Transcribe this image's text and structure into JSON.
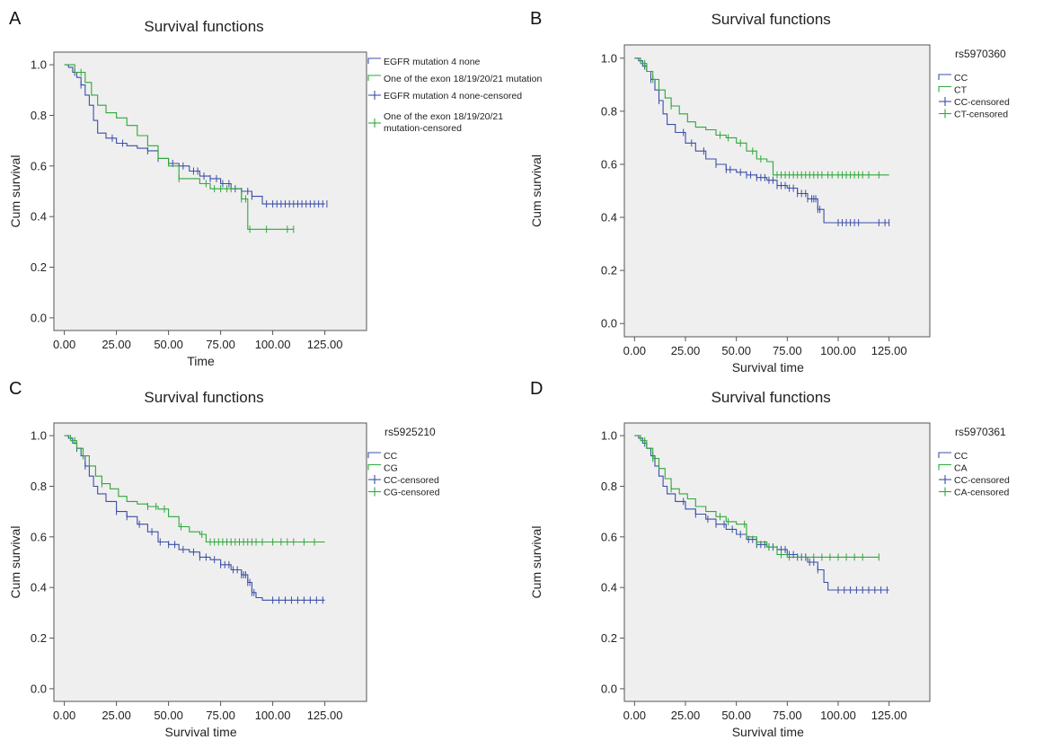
{
  "colors": {
    "blue": "#3b4fa8",
    "green": "#2ea83a",
    "plot_bg": "#efefef",
    "frame": "#555555"
  },
  "chart_data": [
    {
      "type": "line",
      "panel_label": "A",
      "title": "Survival functions",
      "xlabel": "Time",
      "ylabel": "Cum survival",
      "xlim": [
        -5,
        145
      ],
      "ylim": [
        -0.05,
        1.05
      ],
      "xticks": [
        "0.00",
        "25.00",
        "50.00",
        "75.00",
        "100.00",
        "125.00"
      ],
      "yticks": [
        "0.0",
        "0.2",
        "0.4",
        "0.6",
        "0.8",
        "1.0"
      ],
      "legend_title": "",
      "legend_placement": "right",
      "legend": [
        "EGFR mutation 4 none",
        "One of the exon 18/19/20/21 mutation",
        "EGFR mutation 4 none-censored",
        "One of the exon 18/19/20/21 mutation-censored"
      ],
      "series": [
        {
          "color": "blue",
          "x": [
            0,
            2,
            4,
            6,
            8,
            10,
            12,
            14,
            16,
            20,
            25,
            30,
            35,
            40,
            45,
            50,
            55,
            60,
            65,
            70,
            75,
            80,
            85,
            90,
            95,
            100,
            110,
            125
          ],
          "y": [
            1.0,
            0.99,
            0.97,
            0.95,
            0.92,
            0.88,
            0.84,
            0.78,
            0.73,
            0.71,
            0.69,
            0.68,
            0.67,
            0.66,
            0.63,
            0.61,
            0.6,
            0.58,
            0.56,
            0.55,
            0.53,
            0.51,
            0.5,
            0.48,
            0.45,
            0.45,
            0.45,
            0.45
          ],
          "censored": [
            5,
            8,
            23,
            28,
            40,
            45,
            52,
            57,
            62,
            64,
            67,
            70,
            73,
            76,
            79,
            82,
            85,
            88,
            90,
            97,
            100,
            102,
            104,
            106,
            108,
            110,
            112,
            114,
            116,
            118,
            120,
            122,
            124,
            126
          ]
        },
        {
          "color": "green",
          "x": [
            0,
            5,
            10,
            13,
            16,
            20,
            25,
            30,
            35,
            40,
            45,
            50,
            55,
            60,
            65,
            70,
            75,
            80,
            85,
            88,
            100,
            110
          ],
          "y": [
            1.0,
            0.97,
            0.93,
            0.88,
            0.84,
            0.81,
            0.79,
            0.76,
            0.72,
            0.68,
            0.63,
            0.6,
            0.55,
            0.55,
            0.53,
            0.51,
            0.51,
            0.51,
            0.47,
            0.35,
            0.35,
            0.35
          ],
          "censored": [
            8,
            55,
            68,
            72,
            75,
            78,
            80,
            85,
            87,
            89,
            97,
            107,
            110
          ]
        }
      ]
    },
    {
      "type": "line",
      "panel_label": "B",
      "title": "Survival functions",
      "xlabel": "Survival time",
      "ylabel": "Cum survival",
      "xlim": [
        -5,
        145
      ],
      "ylim": [
        -0.05,
        1.05
      ],
      "xticks": [
        "0.00",
        "25.00",
        "50.00",
        "75.00",
        "100.00",
        "125.00"
      ],
      "yticks": [
        "0.0",
        "0.2",
        "0.4",
        "0.6",
        "0.8",
        "1.0"
      ],
      "legend_title": "rs5970360",
      "legend_placement": "right",
      "legend": [
        "CC",
        "CT",
        "CC-censored",
        "CT-censored"
      ],
      "series": [
        {
          "color": "blue",
          "x": [
            0,
            2,
            4,
            6,
            8,
            10,
            12,
            14,
            16,
            20,
            25,
            30,
            35,
            40,
            45,
            50,
            55,
            60,
            65,
            70,
            75,
            80,
            85,
            90,
            93,
            95,
            100,
            125
          ],
          "y": [
            1.0,
            0.99,
            0.97,
            0.95,
            0.92,
            0.88,
            0.84,
            0.79,
            0.75,
            0.72,
            0.68,
            0.65,
            0.62,
            0.6,
            0.58,
            0.57,
            0.56,
            0.55,
            0.54,
            0.52,
            0.51,
            0.49,
            0.47,
            0.43,
            0.38,
            0.38,
            0.38,
            0.38
          ],
          "censored": [
            5,
            8,
            12,
            24,
            28,
            34,
            40,
            45,
            47,
            52,
            55,
            57,
            60,
            62,
            64,
            66,
            68,
            70,
            72,
            74,
            76,
            78,
            80,
            82,
            84,
            85,
            87,
            88,
            89,
            90,
            91,
            100,
            102,
            104,
            106,
            108,
            110,
            120,
            123,
            125
          ]
        },
        {
          "color": "green",
          "x": [
            0,
            3,
            6,
            9,
            12,
            15,
            18,
            22,
            26,
            30,
            35,
            40,
            45,
            50,
            55,
            60,
            65,
            68,
            125
          ],
          "y": [
            1.0,
            0.98,
            0.95,
            0.92,
            0.88,
            0.85,
            0.82,
            0.79,
            0.76,
            0.74,
            0.73,
            0.71,
            0.7,
            0.68,
            0.65,
            0.62,
            0.61,
            0.56,
            0.56
          ],
          "censored": [
            5,
            9,
            18,
            42,
            46,
            52,
            58,
            62,
            70,
            72,
            74,
            76,
            78,
            80,
            82,
            84,
            86,
            88,
            90,
            92,
            95,
            97,
            100,
            102,
            104,
            106,
            108,
            110,
            112,
            115,
            120
          ]
        }
      ]
    },
    {
      "type": "line",
      "panel_label": "C",
      "title": "Survival functions",
      "xlabel": "Survival time",
      "ylabel": "Cum survival",
      "xlim": [
        -5,
        145
      ],
      "ylim": [
        -0.05,
        1.05
      ],
      "xticks": [
        "0.00",
        "25.00",
        "50.00",
        "75.00",
        "100.00",
        "125.00"
      ],
      "yticks": [
        "0.0",
        "0.2",
        "0.4",
        "0.6",
        "0.8",
        "1.0"
      ],
      "legend_title": "rs5925210",
      "legend_placement": "right",
      "legend": [
        "CC",
        "CG",
        "CC-censored",
        "CG-censored"
      ],
      "series": [
        {
          "color": "blue",
          "x": [
            0,
            2,
            4,
            6,
            8,
            10,
            12,
            14,
            16,
            20,
            25,
            30,
            35,
            40,
            45,
            50,
            55,
            60,
            65,
            70,
            75,
            80,
            85,
            88,
            90,
            92,
            95,
            125
          ],
          "y": [
            1.0,
            0.99,
            0.97,
            0.95,
            0.92,
            0.88,
            0.84,
            0.8,
            0.77,
            0.74,
            0.7,
            0.68,
            0.65,
            0.62,
            0.58,
            0.57,
            0.55,
            0.54,
            0.52,
            0.51,
            0.49,
            0.47,
            0.45,
            0.42,
            0.38,
            0.36,
            0.35,
            0.35
          ],
          "censored": [
            6,
            10,
            25,
            30,
            36,
            42,
            46,
            50,
            53,
            57,
            62,
            65,
            68,
            72,
            75,
            77,
            79,
            81,
            83,
            85,
            86,
            87,
            88,
            89,
            90,
            91,
            100,
            103,
            106,
            109,
            112,
            115,
            118,
            121,
            124
          ]
        },
        {
          "color": "green",
          "x": [
            0,
            3,
            6,
            9,
            12,
            15,
            18,
            22,
            26,
            30,
            35,
            40,
            45,
            50,
            55,
            60,
            65,
            68,
            125
          ],
          "y": [
            1.0,
            0.98,
            0.95,
            0.92,
            0.88,
            0.84,
            0.81,
            0.79,
            0.76,
            0.74,
            0.73,
            0.72,
            0.71,
            0.68,
            0.64,
            0.62,
            0.61,
            0.58,
            0.58
          ],
          "censored": [
            5,
            9,
            18,
            40,
            44,
            48,
            56,
            66,
            70,
            72,
            74,
            76,
            78,
            80,
            82,
            84,
            86,
            88,
            90,
            92,
            95,
            100,
            104,
            107,
            110,
            115,
            120
          ]
        }
      ]
    },
    {
      "type": "line",
      "panel_label": "D",
      "title": "Survival functions",
      "xlabel": "Survival time",
      "ylabel": "Cum survival",
      "xlim": [
        -5,
        145
      ],
      "ylim": [
        -0.05,
        1.05
      ],
      "xticks": [
        "0.00",
        "25.00",
        "50.00",
        "75.00",
        "100.00",
        "125.00"
      ],
      "yticks": [
        "0.0",
        "0.2",
        "0.4",
        "0.6",
        "0.8",
        "1.0"
      ],
      "legend_title": "rs5970361",
      "legend_placement": "right",
      "legend": [
        "CC",
        "CA",
        "CC-censored",
        "CA-censored"
      ],
      "series": [
        {
          "color": "blue",
          "x": [
            0,
            2,
            4,
            6,
            8,
            10,
            12,
            14,
            16,
            20,
            25,
            30,
            35,
            40,
            45,
            50,
            55,
            60,
            65,
            70,
            75,
            80,
            85,
            90,
            93,
            95,
            100,
            125
          ],
          "y": [
            1.0,
            0.99,
            0.97,
            0.95,
            0.92,
            0.88,
            0.84,
            0.8,
            0.77,
            0.74,
            0.71,
            0.69,
            0.67,
            0.65,
            0.63,
            0.61,
            0.59,
            0.57,
            0.56,
            0.55,
            0.53,
            0.52,
            0.5,
            0.47,
            0.42,
            0.39,
            0.39,
            0.39
          ],
          "censored": [
            5,
            9,
            24,
            30,
            36,
            40,
            44,
            48,
            52,
            56,
            58,
            60,
            62,
            64,
            66,
            68,
            70,
            72,
            74,
            76,
            78,
            80,
            82,
            84,
            86,
            88,
            90,
            100,
            103,
            106,
            109,
            112,
            115,
            118,
            121,
            124
          ]
        },
        {
          "color": "green",
          "x": [
            0,
            3,
            6,
            9,
            12,
            15,
            18,
            22,
            26,
            30,
            35,
            40,
            45,
            50,
            55,
            60,
            65,
            70,
            75,
            120
          ],
          "y": [
            1.0,
            0.98,
            0.95,
            0.91,
            0.87,
            0.83,
            0.79,
            0.77,
            0.75,
            0.72,
            0.7,
            0.68,
            0.66,
            0.65,
            0.6,
            0.58,
            0.56,
            0.53,
            0.52,
            0.52
          ],
          "censored": [
            5,
            9,
            18,
            42,
            46,
            54,
            60,
            66,
            72,
            76,
            80,
            84,
            88,
            92,
            96,
            100,
            104,
            108,
            112,
            120
          ]
        }
      ]
    }
  ]
}
